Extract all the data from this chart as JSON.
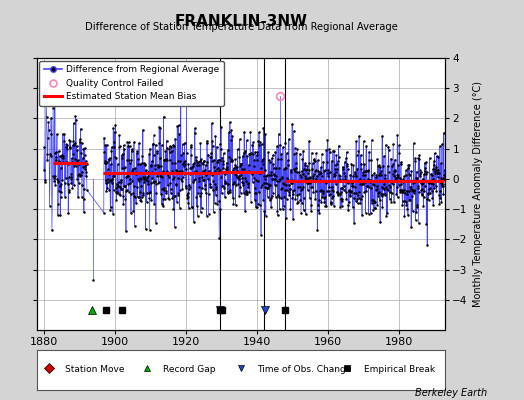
{
  "title": "FRANKLIN-3NW",
  "subtitle": "Difference of Station Temperature Data from Regional Average",
  "ylabel": "Monthly Temperature Anomaly Difference (°C)",
  "background_color": "#d4d4d4",
  "plot_bg_color": "#ffffff",
  "xlim": [
    1878,
    1993
  ],
  "ylim": [
    -5,
    4
  ],
  "yticks": [
    -4,
    -3,
    -2,
    -1,
    0,
    1,
    2,
    3,
    4
  ],
  "xticks": [
    1880,
    1900,
    1920,
    1940,
    1960,
    1980
  ],
  "grid_color": "#aaaaaa",
  "line_color": "#4444ff",
  "dot_color": "#000000",
  "qc_color": "#ff88bb",
  "bias_color": "#ff0000",
  "marker_area_y": -4.35,
  "gap_ranges": [
    [
      1892.2,
      1896.8
    ]
  ],
  "bias_segments": [
    {
      "start": 1882.5,
      "end": 1892.2,
      "bias": 0.52
    },
    {
      "start": 1896.8,
      "end": 1918.5,
      "bias": 0.18
    },
    {
      "start": 1918.5,
      "end": 1929.5,
      "bias": 0.18
    },
    {
      "start": 1929.5,
      "end": 1942.0,
      "bias": 0.22
    },
    {
      "start": 1948.0,
      "end": 1992.5,
      "bias": -0.07
    }
  ],
  "record_gaps": [
    1893.5
  ],
  "obs_changes": [
    1929.5,
    1942.2
  ],
  "empirical_breaks": [
    1897.5,
    1902.0,
    1929.5,
    1930.2,
    1948.0
  ],
  "vert_lines": [
    1929.5,
    1942.0,
    1948.0
  ],
  "qc_point_x": 1946.5,
  "qc_point_y": 2.75,
  "spike_x": 1893.8,
  "spike_y": -3.35,
  "early_start": 1880,
  "early_end": 1883,
  "data_start": 1883,
  "data_end": 1993
}
